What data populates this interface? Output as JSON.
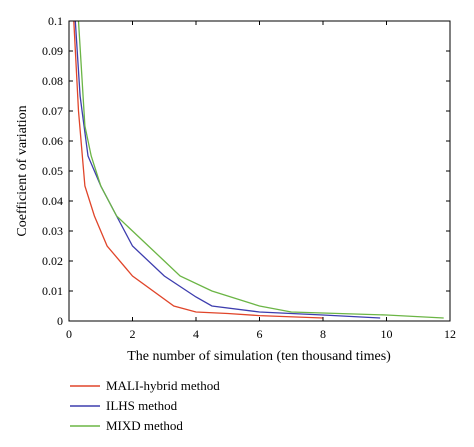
{
  "chart_data": {
    "type": "line",
    "xlabel": "The number of simulation (ten thousand times)",
    "ylabel": "Coefficient of variation",
    "xlim": [
      0,
      12
    ],
    "ylim": [
      0,
      0.1
    ],
    "x_ticks": [
      0,
      2,
      4,
      6,
      8,
      10,
      12
    ],
    "y_ticks": [
      0,
      0.01,
      0.02,
      0.03,
      0.04,
      0.05,
      0.06,
      0.07,
      0.08,
      0.09,
      0.1
    ],
    "y_tick_labels": [
      "0",
      "0.01",
      "0.02",
      "0.03",
      "0.04",
      "0.05",
      "0.06",
      "0.07",
      "0.08",
      "0.09",
      "0.1"
    ],
    "grid": false,
    "legend_position": "bottom-left (below plot)",
    "series": [
      {
        "name": "MALI-hybrid method",
        "color": "#e0452a",
        "x": [
          0.15,
          0.3,
          0.5,
          0.8,
          1.2,
          2.0,
          3.3,
          4.0,
          5.0,
          6.0,
          8.0
        ],
        "y": [
          0.1,
          0.07,
          0.045,
          0.035,
          0.025,
          0.015,
          0.005,
          0.003,
          0.0025,
          0.0018,
          0.001
        ]
      },
      {
        "name": "ILHS method",
        "color": "#3d3dae",
        "x": [
          0.2,
          0.35,
          0.6,
          1.0,
          1.5,
          2.0,
          3.0,
          4.0,
          4.5,
          6.0,
          8.0,
          9.8
        ],
        "y": [
          0.1,
          0.075,
          0.055,
          0.045,
          0.035,
          0.025,
          0.015,
          0.008,
          0.005,
          0.003,
          0.002,
          0.001
        ]
      },
      {
        "name": "MIXD method",
        "color": "#6bb545",
        "x": [
          0.3,
          0.5,
          0.7,
          1.0,
          1.5,
          2.0,
          2.5,
          3.0,
          3.5,
          4.5,
          6.0,
          7.0,
          10.0,
          11.8
        ],
        "y": [
          0.1,
          0.065,
          0.055,
          0.045,
          0.035,
          0.03,
          0.025,
          0.02,
          0.015,
          0.01,
          0.005,
          0.003,
          0.002,
          0.001
        ]
      }
    ]
  }
}
